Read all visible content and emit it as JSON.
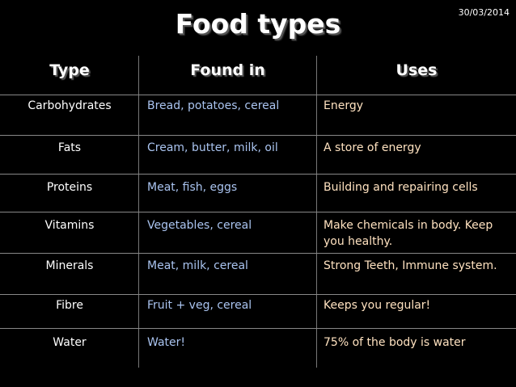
{
  "date": "30/03/2014",
  "title": "Food types",
  "headers": {
    "type": "Type",
    "found_in": "Found in",
    "uses": "Uses"
  },
  "rows": [
    {
      "type": "Carbohydrates",
      "found_in": "Bread, potatoes, cereal",
      "uses": "Energy"
    },
    {
      "type": "Fats",
      "found_in": "Cream, butter, milk, oil",
      "uses": "A store of energy"
    },
    {
      "type": "Proteins",
      "found_in": "Meat, fish, eggs",
      "uses": "Building and repairing cells"
    },
    {
      "type": "Vitamins",
      "found_in": "Vegetables, cereal",
      "uses": "Make chemicals in body. Keep you healthy."
    },
    {
      "type": "Minerals",
      "found_in": "Meat, milk, cereal",
      "uses": "Strong Teeth, Immune system."
    },
    {
      "type": "Fibre",
      "found_in": "Fruit + veg, cereal",
      "uses": "Keeps you regular!"
    },
    {
      "type": "Water",
      "found_in": "Water!",
      "uses": "75% of the body is water"
    }
  ],
  "colors": {
    "background": "#000000",
    "type_text": "#ffffff",
    "found_in_text": "#aac4f0",
    "uses_text": "#ffe2c0"
  }
}
